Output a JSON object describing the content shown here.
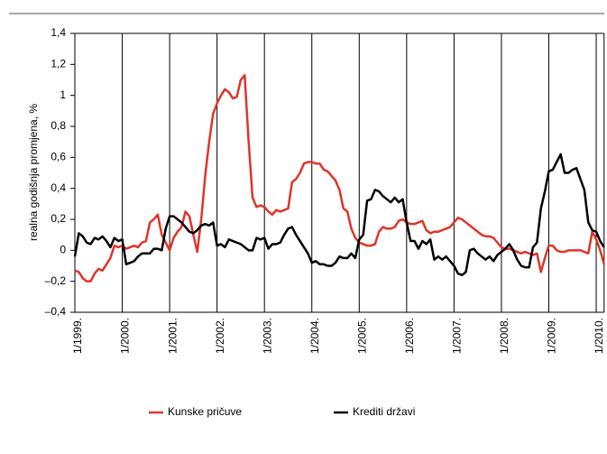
{
  "chart_data": {
    "type": "line",
    "y_label": "realna godišnja promjena, %",
    "categories": [
      "1/1999.",
      null,
      null,
      null,
      null,
      null,
      null,
      null,
      null,
      null,
      null,
      null,
      "1/2000.",
      null,
      null,
      null,
      null,
      null,
      null,
      null,
      null,
      null,
      null,
      null,
      "1/2001.",
      null,
      null,
      null,
      null,
      null,
      null,
      null,
      null,
      null,
      null,
      null,
      "1/2002.",
      null,
      null,
      null,
      null,
      null,
      null,
      null,
      null,
      null,
      null,
      null,
      "1/2003.",
      null,
      null,
      null,
      null,
      null,
      null,
      null,
      null,
      null,
      null,
      null,
      "1/2004.",
      null,
      null,
      null,
      null,
      null,
      null,
      null,
      null,
      null,
      null,
      null,
      "1/2005.",
      null,
      null,
      null,
      null,
      null,
      null,
      null,
      null,
      null,
      null,
      null,
      "1/2006.",
      null,
      null,
      null,
      null,
      null,
      null,
      null,
      null,
      null,
      null,
      null,
      "1/2007.",
      null,
      null,
      null,
      null,
      null,
      null,
      null,
      null,
      null,
      null,
      null,
      "1/2008.",
      null,
      null,
      null,
      null,
      null,
      null,
      null,
      null,
      null,
      null,
      null,
      "1/2009.",
      null,
      null,
      null,
      null,
      null,
      null,
      null,
      null,
      null,
      null,
      null,
      "1/2010.",
      null,
      null
    ],
    "series": [
      {
        "name": "Kunske pričuve",
        "color": "#e0342a",
        "values": [
          -0.13,
          -0.14,
          -0.18,
          -0.2,
          -0.2,
          -0.15,
          -0.12,
          -0.13,
          -0.09,
          -0.05,
          0.03,
          0.02,
          0.03,
          0.01,
          0.02,
          0.03,
          0.02,
          0.05,
          0.06,
          0.18,
          0.2,
          0.23,
          0.1,
          0.05,
          0.0,
          0.08,
          0.12,
          0.15,
          0.25,
          0.22,
          0.1,
          -0.01,
          0.2,
          0.48,
          0.7,
          0.88,
          0.95,
          1.0,
          1.04,
          1.02,
          0.98,
          0.99,
          1.1,
          1.13,
          0.7,
          0.34,
          0.28,
          0.29,
          0.28,
          0.25,
          0.23,
          0.26,
          0.25,
          0.26,
          0.27,
          0.44,
          0.46,
          0.5,
          0.56,
          0.57,
          0.57,
          0.56,
          0.56,
          0.52,
          0.51,
          0.48,
          0.45,
          0.39,
          0.27,
          0.25,
          0.14,
          0.08,
          0.05,
          0.04,
          0.03,
          0.03,
          0.04,
          0.12,
          0.15,
          0.14,
          0.14,
          0.15,
          0.19,
          0.2,
          0.18,
          0.17,
          0.17,
          0.18,
          0.19,
          0.13,
          0.11,
          0.12,
          0.12,
          0.13,
          0.14,
          0.15,
          0.18,
          0.21,
          0.2,
          0.18,
          0.16,
          0.14,
          0.12,
          0.1,
          0.09,
          0.09,
          0.08,
          0.05,
          0.02,
          0.01,
          0.01,
          0.0,
          -0.01,
          -0.02,
          -0.01,
          -0.02,
          -0.03,
          -0.02,
          -0.14,
          -0.05,
          0.03,
          0.03,
          0.0,
          -0.01,
          -0.01,
          0.0,
          0.0,
          0.0,
          0.0,
          -0.01,
          -0.02,
          0.12,
          0.07,
          0.0,
          -0.09
        ]
      },
      {
        "name": "Krediti državi",
        "color": "#000000",
        "values": [
          -0.04,
          0.11,
          0.09,
          0.05,
          0.04,
          0.08,
          0.07,
          0.09,
          0.06,
          0.02,
          0.08,
          0.06,
          0.07,
          -0.09,
          -0.08,
          -0.07,
          -0.04,
          -0.02,
          -0.02,
          -0.02,
          0.01,
          0.01,
          0.0,
          0.14,
          0.22,
          0.22,
          0.2,
          0.18,
          0.15,
          0.12,
          0.11,
          0.13,
          0.16,
          0.17,
          0.16,
          0.18,
          0.03,
          0.04,
          0.02,
          0.07,
          0.06,
          0.05,
          0.04,
          0.02,
          0.0,
          0.0,
          0.08,
          0.07,
          0.08,
          0.01,
          0.04,
          0.04,
          0.05,
          0.1,
          0.14,
          0.15,
          0.1,
          0.06,
          0.02,
          -0.02,
          -0.08,
          -0.07,
          -0.09,
          -0.09,
          -0.1,
          -0.1,
          -0.08,
          -0.04,
          -0.05,
          -0.05,
          -0.02,
          -0.05,
          0.07,
          0.1,
          0.32,
          0.33,
          0.39,
          0.38,
          0.35,
          0.33,
          0.31,
          0.34,
          0.31,
          0.33,
          0.18,
          0.06,
          0.06,
          0.01,
          0.06,
          0.04,
          0.07,
          -0.06,
          -0.04,
          -0.06,
          -0.04,
          -0.07,
          -0.1,
          -0.15,
          -0.16,
          -0.14,
          0.0,
          0.01,
          -0.02,
          -0.04,
          -0.06,
          -0.04,
          -0.07,
          -0.03,
          -0.01,
          0.01,
          0.04,
          0.0,
          -0.06,
          -0.1,
          -0.11,
          -0.11,
          0.02,
          0.05,
          0.27,
          0.38,
          0.51,
          0.52,
          0.57,
          0.62,
          0.5,
          0.5,
          0.52,
          0.53,
          0.46,
          0.39,
          0.18,
          0.13,
          0.12,
          0.06,
          0.02
        ]
      }
    ],
    "ylim": [
      -0.4,
      1.4
    ],
    "yticks": [
      {
        "value": -0.4,
        "label": "–0,4"
      },
      {
        "value": -0.2,
        "label": "–0,2"
      },
      0,
      {
        "value": 0.2,
        "label": "0,2"
      },
      {
        "value": 0.4,
        "label": "0,4"
      },
      {
        "value": 0.6,
        "label": "0,6"
      },
      {
        "value": 0.8,
        "label": "0,8"
      },
      1,
      {
        "value": 1.2,
        "label": "1,2"
      },
      {
        "value": 1.4,
        "label": "1,4"
      }
    ],
    "grid": "x",
    "legend": "bottom"
  }
}
